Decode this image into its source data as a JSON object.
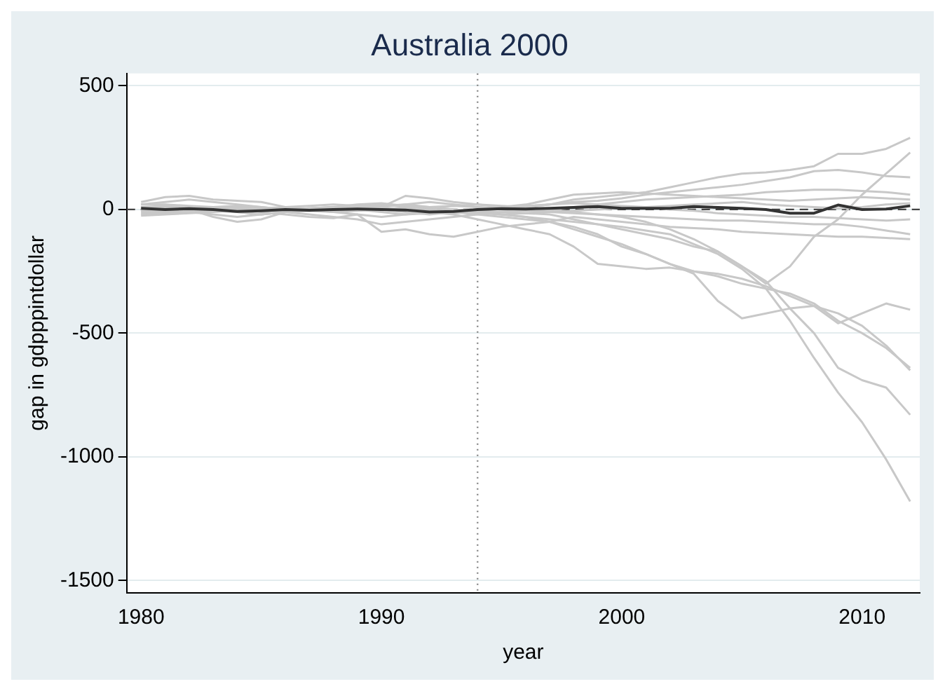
{
  "chart_data": {
    "type": "line",
    "title": "Australia 2000",
    "xlabel": "year",
    "ylabel": "gap in gdpppintdollar",
    "x": [
      1980,
      1981,
      1982,
      1983,
      1984,
      1985,
      1986,
      1987,
      1988,
      1989,
      1990,
      1991,
      1992,
      1993,
      1994,
      1995,
      1996,
      1997,
      1998,
      1999,
      2000,
      2001,
      2002,
      2003,
      2004,
      2005,
      2006,
      2007,
      2008,
      2009,
      2010,
      2011,
      2012
    ],
    "xlim": [
      1979.4,
      2012.4
    ],
    "xticks": [
      1980,
      1990,
      2000,
      2010
    ],
    "ylim": [
      -1550,
      550
    ],
    "yticks": [
      -1500,
      -1000,
      -500,
      0,
      500
    ],
    "grid": "y",
    "legend": false,
    "marker": "none",
    "line_style": "solid",
    "ref_lines": [
      {
        "axis": "x",
        "value": 1994,
        "color": "#888888",
        "line_style": "dotted"
      },
      {
        "axis": "y",
        "value": 0,
        "color": "#444444",
        "line_style": "dashed"
      }
    ],
    "series": [
      {
        "color": "#c8c8c8",
        "values": [
          20,
          30,
          40,
          30,
          20,
          10,
          0,
          5,
          10,
          15,
          10,
          20,
          30,
          20,
          10,
          5,
          10,
          20,
          40,
          50,
          60,
          70,
          90,
          110,
          130,
          145,
          150,
          160,
          175,
          225,
          225,
          245,
          290
        ]
      },
      {
        "color": "#c8c8c8",
        "values": [
          -10,
          -5,
          0,
          5,
          0,
          -5,
          0,
          5,
          10,
          5,
          0,
          -10,
          -20,
          -10,
          0,
          5,
          10,
          0,
          -10,
          -20,
          -30,
          -50,
          -80,
          -120,
          -170,
          -230,
          -300,
          -230,
          -110,
          -40,
          60,
          145,
          230
        ]
      },
      {
        "color": "#c8c8c8",
        "values": [
          0,
          10,
          10,
          5,
          0,
          5,
          10,
          15,
          20,
          15,
          20,
          10,
          5,
          15,
          20,
          15,
          10,
          20,
          30,
          35,
          45,
          60,
          70,
          80,
          90,
          100,
          115,
          130,
          155,
          160,
          150,
          135,
          130
        ]
      },
      {
        "color": "#c8c8c8",
        "values": [
          10,
          15,
          10,
          0,
          -10,
          -20,
          -10,
          0,
          5,
          0,
          -10,
          -20,
          -15,
          -10,
          -20,
          -30,
          -40,
          -50,
          -70,
          -100,
          -150,
          -180,
          -220,
          -260,
          -370,
          -440,
          -420,
          -400,
          -390,
          -460,
          -420,
          -380,
          -405
        ]
      },
      {
        "color": "#c8c8c8",
        "values": [
          -5,
          0,
          5,
          10,
          5,
          0,
          -5,
          0,
          5,
          10,
          5,
          0,
          -10,
          -15,
          -10,
          -20,
          -30,
          -50,
          -80,
          -110,
          -140,
          -180,
          -220,
          -250,
          -260,
          -280,
          -310,
          -350,
          -390,
          -420,
          -470,
          -550,
          -650
        ]
      },
      {
        "color": "#c8c8c8",
        "values": [
          0,
          -5,
          -10,
          -20,
          -30,
          -20,
          -10,
          -5,
          0,
          5,
          0,
          5,
          10,
          0,
          -10,
          -20,
          -30,
          -40,
          -50,
          -60,
          -80,
          -100,
          -120,
          -150,
          -170,
          -230,
          -290,
          -400,
          -500,
          -640,
          -690,
          -720,
          -830
        ]
      },
      {
        "color": "#c8c8c8",
        "values": [
          -15,
          -10,
          -5,
          0,
          -10,
          -20,
          -10,
          -20,
          -30,
          -40,
          -60,
          -50,
          -40,
          -30,
          -20,
          -10,
          -15,
          -20,
          -40,
          -60,
          -70,
          -85,
          -100,
          -140,
          -180,
          -240,
          -320,
          -450,
          -600,
          -740,
          -860,
          -1010,
          -1180
        ]
      },
      {
        "color": "#c8c8c8",
        "values": [
          30,
          50,
          55,
          40,
          35,
          30,
          10,
          0,
          -10,
          -20,
          -30,
          -20,
          -10,
          -20,
          -40,
          -60,
          -80,
          -100,
          -150,
          -220,
          -230,
          -240,
          -235,
          -250,
          -270,
          -300,
          -320,
          -340,
          -380,
          -450,
          -500,
          -560,
          -640
        ]
      },
      {
        "color": "#c8c8c8",
        "values": [
          0,
          -5,
          0,
          5,
          0,
          -10,
          -20,
          -30,
          -35,
          -20,
          -90,
          -80,
          -100,
          -110,
          -90,
          -70,
          -60,
          -50,
          -30,
          -40,
          -50,
          -60,
          -70,
          -75,
          -80,
          -90,
          -95,
          -100,
          -105,
          -110,
          -110,
          -115,
          -120
        ]
      },
      {
        "color": "#c8c8c8",
        "values": [
          5,
          10,
          0,
          -30,
          -50,
          -40,
          -10,
          0,
          5,
          10,
          15,
          20,
          10,
          0,
          -5,
          -10,
          -5,
          0,
          10,
          20,
          30,
          40,
          45,
          50,
          55,
          60,
          70,
          75,
          80,
          80,
          75,
          70,
          60
        ]
      },
      {
        "color": "#c8c8c8",
        "values": [
          20,
          20,
          15,
          10,
          10,
          5,
          0,
          0,
          5,
          10,
          10,
          55,
          45,
          30,
          20,
          10,
          20,
          40,
          60,
          65,
          70,
          65,
          60,
          55,
          50,
          45,
          40,
          35,
          40,
          45,
          50,
          45,
          40
        ]
      },
      {
        "color": "#c8c8c8",
        "values": [
          -20,
          -15,
          -10,
          -5,
          -10,
          -5,
          0,
          5,
          10,
          20,
          25,
          15,
          10,
          15,
          10,
          0,
          -5,
          -10,
          -15,
          -20,
          -25,
          -30,
          -35,
          -40,
          -45,
          -45,
          -50,
          -55,
          -60,
          -60,
          -70,
          -85,
          -100
        ]
      },
      {
        "color": "#c8c8c8",
        "values": [
          10,
          5,
          0,
          10,
          15,
          10,
          0,
          -5,
          -10,
          -5,
          0,
          5,
          0,
          -5,
          0,
          10,
          15,
          20,
          25,
          20,
          15,
          10,
          0,
          -5,
          -15,
          -20,
          -25,
          -30,
          -30,
          -35,
          -40,
          -45,
          -40
        ]
      },
      {
        "color": "#c8c8c8",
        "values": [
          -25,
          -20,
          -15,
          -10,
          -5,
          0,
          5,
          0,
          -5,
          0,
          5,
          0,
          -5,
          -10,
          -15,
          -20,
          -15,
          -10,
          -5,
          0,
          5,
          10,
          15,
          20,
          25,
          30,
          20,
          15,
          10,
          5,
          10,
          20,
          25
        ]
      },
      {
        "color": "#333333",
        "values": [
          5,
          0,
          3,
          0,
          -8,
          -5,
          0,
          -3,
          0,
          2,
          0,
          -2,
          -10,
          -8,
          0,
          3,
          2,
          5,
          8,
          12,
          5,
          5,
          5,
          12,
          8,
          5,
          0,
          -15,
          -15,
          18,
          0,
          2,
          15
        ]
      }
    ]
  }
}
